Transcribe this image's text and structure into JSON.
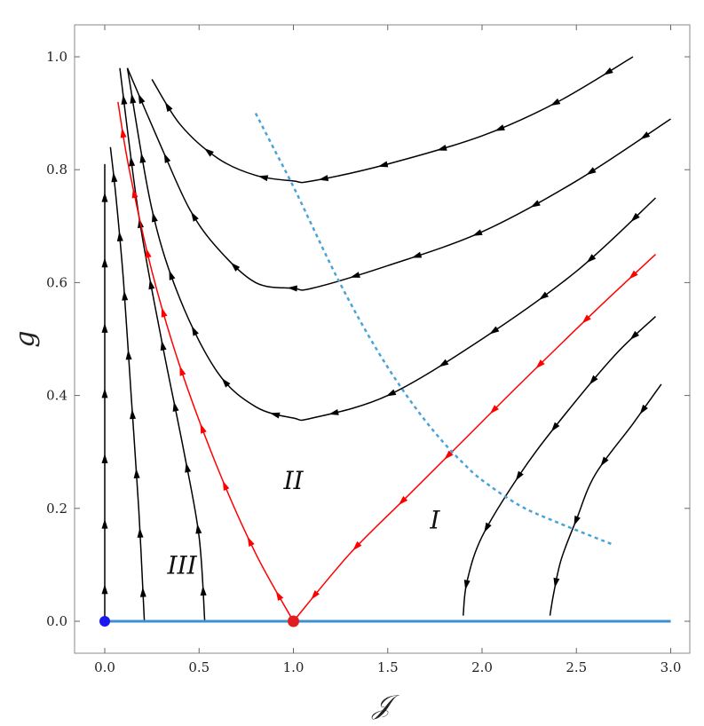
{
  "chart_data": {
    "type": "line",
    "title": "",
    "xlabel": "𝒥",
    "ylabel": "g",
    "xlim": [
      -0.08,
      3.08
    ],
    "ylim": [
      -0.06,
      1.05
    ],
    "xticks": [
      0.0,
      0.5,
      1.0,
      1.5,
      2.0,
      2.5,
      3.0
    ],
    "xtick_labels": [
      "0.0",
      "0.5",
      "1.0",
      "1.5",
      "2.0",
      "2.5",
      "3.0"
    ],
    "yticks": [
      0.0,
      0.2,
      0.4,
      0.6,
      0.8,
      1.0
    ],
    "ytick_labels": [
      "0.0",
      "0.2",
      "0.4",
      "0.6",
      "0.8",
      "1.0"
    ],
    "grid": false,
    "colors": {
      "flow": "#000000",
      "separatrix": "#ff0000",
      "fixed_line": "#3f8fd0",
      "boundary": "#4aa3d8",
      "origin_point": "#1a1aee",
      "critical_point": "#e02020"
    },
    "regions": [
      {
        "label": "I",
        "x": 1.75,
        "y": 0.18
      },
      {
        "label": "II",
        "x": 1.0,
        "y": 0.25
      },
      {
        "label": "III",
        "x": 0.41,
        "y": 0.1
      }
    ],
    "fixed_points": [
      {
        "x": 0.0,
        "y": 0.0
      },
      {
        "x": 1.0,
        "y": 0.0
      }
    ],
    "fixed_line": {
      "x": [
        0.0,
        3.0
      ],
      "y": [
        0.0,
        0.0
      ]
    },
    "boundary_curve": {
      "style": "dashed",
      "x": [
        0.8,
        0.9,
        1.0,
        1.1,
        1.2,
        1.3,
        1.4,
        1.5,
        1.6,
        1.7,
        1.8,
        1.9,
        2.0,
        2.2,
        2.4,
        2.7
      ],
      "y": [
        0.9,
        0.835,
        0.77,
        0.7,
        0.63,
        0.565,
        0.505,
        0.45,
        0.4,
        0.355,
        0.315,
        0.28,
        0.25,
        0.205,
        0.175,
        0.135
      ]
    },
    "series": [
      {
        "color": "#000000",
        "arrow": "up",
        "x": [
          0.0,
          0.0,
          0.0,
          0.0,
          0.0
        ],
        "y": [
          0.0,
          0.2,
          0.4,
          0.6,
          0.81
        ]
      },
      {
        "color": "#000000",
        "arrow": "up",
        "x": [
          0.21,
          0.18,
          0.14,
          0.1,
          0.06,
          0.03
        ],
        "y": [
          0.0,
          0.2,
          0.4,
          0.6,
          0.75,
          0.84
        ]
      },
      {
        "color": "#000000",
        "arrow": "up",
        "x": [
          0.53,
          0.5,
          0.42,
          0.3,
          0.18,
          0.08
        ],
        "y": [
          0.0,
          0.15,
          0.3,
          0.5,
          0.72,
          0.98
        ]
      },
      {
        "color": "#ff0000",
        "arrow": "up",
        "x": [
          1.0,
          0.8,
          0.6,
          0.4,
          0.25,
          0.13,
          0.07
        ],
        "y": [
          0.0,
          0.12,
          0.27,
          0.45,
          0.62,
          0.8,
          0.92
        ]
      },
      {
        "color": "#ff0000",
        "arrow": "down",
        "x": [
          2.92,
          2.6,
          2.2,
          1.9,
          1.6,
          1.3,
          1.0
        ],
        "y": [
          0.65,
          0.55,
          0.42,
          0.32,
          0.22,
          0.12,
          0.0
        ]
      },
      {
        "color": "#000000",
        "arrow": "left",
        "x": [
          2.92,
          2.5,
          2.0,
          1.5,
          1.1,
          1.0,
          0.8,
          0.6,
          0.4,
          0.25,
          0.12
        ],
        "y": [
          0.75,
          0.62,
          0.5,
          0.4,
          0.36,
          0.36,
          0.38,
          0.44,
          0.57,
          0.73,
          0.98
        ]
      },
      {
        "color": "#000000",
        "arrow": "left",
        "x": [
          3.0,
          2.5,
          2.0,
          1.5,
          1.1,
          1.0,
          0.8,
          0.6,
          0.45,
          0.3,
          0.12
        ],
        "y": [
          0.89,
          0.78,
          0.69,
          0.63,
          0.59,
          0.59,
          0.6,
          0.66,
          0.73,
          0.84,
          0.98
        ]
      },
      {
        "color": "#000000",
        "arrow": "left",
        "x": [
          2.8,
          2.4,
          2.0,
          1.5,
          1.1,
          1.0,
          0.8,
          0.6,
          0.4,
          0.25
        ],
        "y": [
          1.0,
          0.92,
          0.86,
          0.81,
          0.78,
          0.78,
          0.79,
          0.82,
          0.88,
          0.96
        ]
      },
      {
        "color": "#000000",
        "arrow": "down",
        "x": [
          2.92,
          2.7,
          2.4,
          2.2,
          2.0,
          1.92,
          1.9
        ],
        "y": [
          0.54,
          0.47,
          0.35,
          0.26,
          0.15,
          0.07,
          0.01
        ]
      },
      {
        "color": "#000000",
        "arrow": "down",
        "x": [
          2.95,
          2.8,
          2.6,
          2.5,
          2.42,
          2.38,
          2.36
        ],
        "y": [
          0.42,
          0.35,
          0.26,
          0.18,
          0.11,
          0.05,
          0.01
        ]
      }
    ]
  }
}
